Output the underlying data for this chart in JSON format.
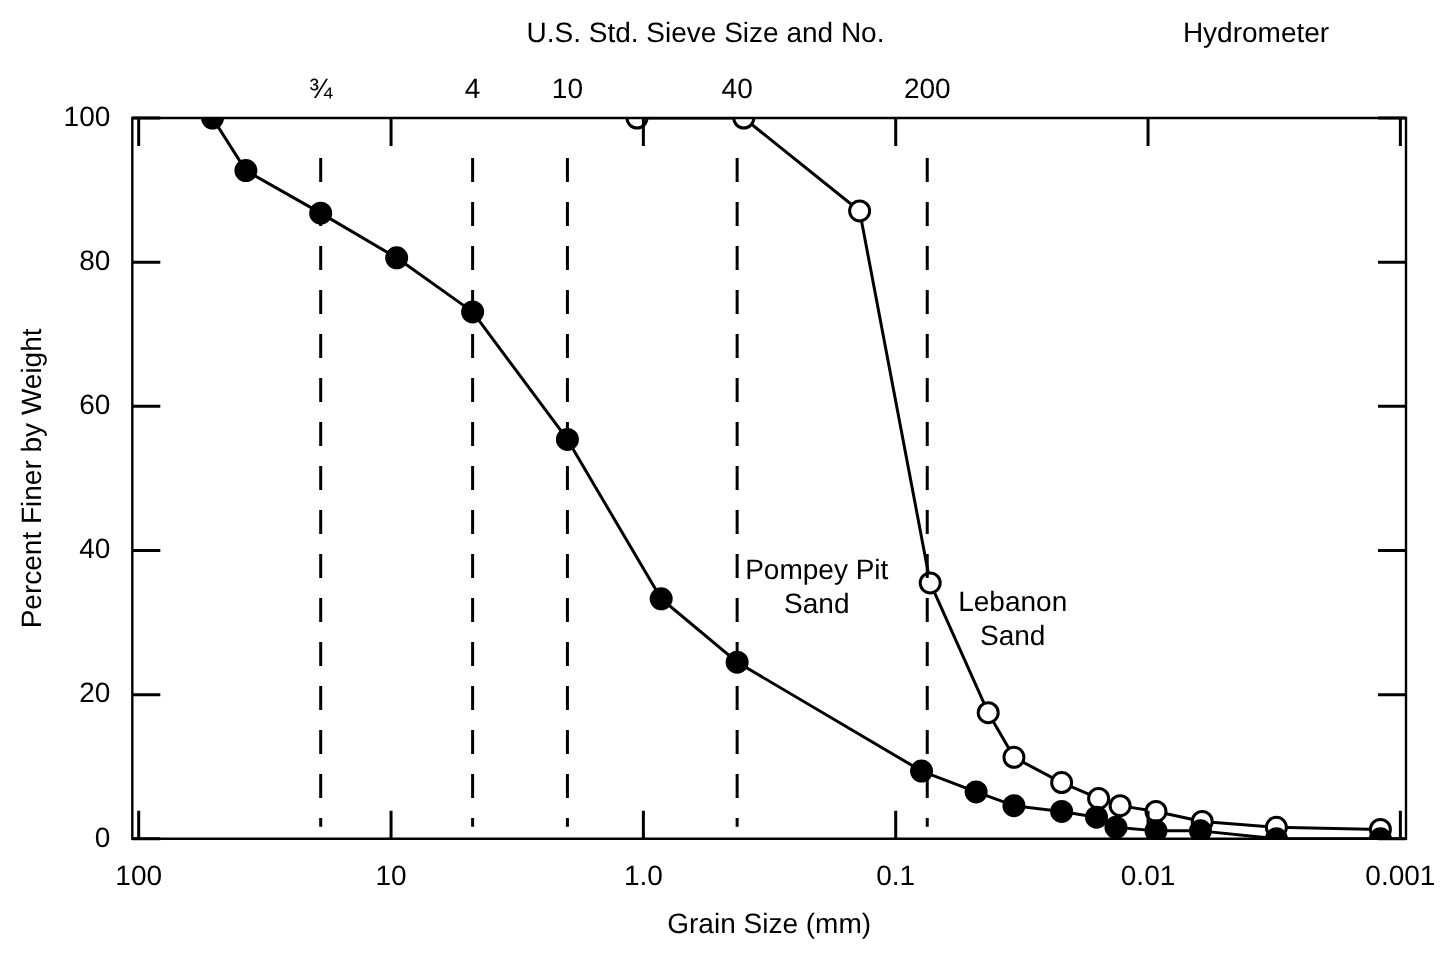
{
  "chart_data": {
    "type": "line",
    "xlabel": "Grain Size (mm)",
    "ylabel": "Percent Finer by Weight",
    "x2label": "U.S. Std. Sieve Size and No.",
    "annotations": [
      "Hydrometer",
      "¾",
      "4",
      "10",
      "40",
      "200"
    ],
    "log": "x",
    "xlim": [
      106,
      0.00095
    ],
    "xticks": [
      100,
      10,
      {
        "value": 1,
        "label": "1.0"
      },
      0.1,
      0.01,
      0.001
    ],
    "ylim": [
      0,
      100
    ],
    "yticks": [
      0,
      20,
      40,
      60,
      80,
      100
    ],
    "grid": false,
    "legend": false,
    "marker": "circle",
    "line_style": "solid",
    "ref_lines": [
      {
        "axis": "x",
        "value": 19,
        "line_style": "dashed"
      },
      {
        "axis": "x",
        "value": 4.75,
        "line_style": "dashed"
      },
      {
        "axis": "x",
        "value": 2,
        "line_style": "dashed"
      },
      {
        "axis": "x",
        "value": 0.425,
        "line_style": "dashed"
      },
      {
        "axis": "x",
        "value": 0.075,
        "line_style": "dashed"
      }
    ],
    "series": [
      {
        "name": "Pompey Pit Sand",
        "color": "#000000",
        "x": [
          51,
          37.6,
          19,
          9.5,
          4.75,
          2,
          0.85,
          0.425,
          0.079,
          0.048,
          0.034,
          0.022,
          0.016,
          0.0134,
          0.0093,
          0.0062,
          0.0031,
          0.0012
        ],
        "values": [
          100,
          92.7,
          86.8,
          80.6,
          73.1,
          55.4,
          33.3,
          24.5,
          9.4,
          6.5,
          4.6,
          3.8,
          3,
          1.6,
          1.1,
          1.1,
          0,
          0
        ]
      },
      {
        "name": "Lebanon Sand",
        "color": "#000000",
        "x": [
          1.06,
          0.4,
          0.139,
          0.073,
          0.043,
          0.034,
          0.022,
          0.0157,
          0.0129,
          0.0093,
          0.0061,
          0.0031,
          0.0012
        ],
        "values": [
          100,
          100,
          87.1,
          35.5,
          17.5,
          11.3,
          7.8,
          5.6,
          4.6,
          3.8,
          2.4,
          1.6,
          1.3
        ]
      }
    ]
  }
}
